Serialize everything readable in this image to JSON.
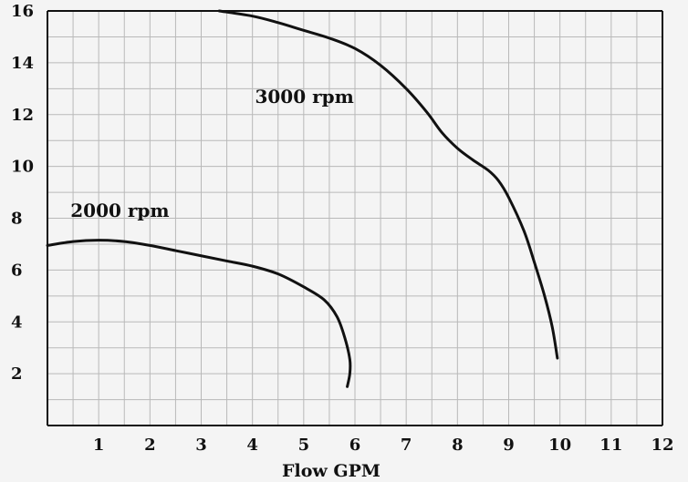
{
  "chart_data": {
    "type": "line",
    "title": "",
    "xlabel": "Flow GPM",
    "ylabel": "",
    "xlim": [
      0,
      12
    ],
    "ylim": [
      0,
      16
    ],
    "x_ticks": [
      1,
      2,
      3,
      4,
      5,
      6,
      7,
      8,
      9,
      10,
      11,
      12
    ],
    "y_ticks": [
      2,
      4,
      6,
      8,
      10,
      12,
      14,
      16
    ],
    "grid": true,
    "series": [
      {
        "name": "2000 rpm",
        "color": "#111111",
        "points": [
          [
            0.0,
            6.95
          ],
          [
            0.5,
            7.1
          ],
          [
            1.0,
            7.15
          ],
          [
            1.5,
            7.1
          ],
          [
            2.0,
            6.95
          ],
          [
            2.5,
            6.75
          ],
          [
            3.0,
            6.55
          ],
          [
            3.5,
            6.35
          ],
          [
            4.0,
            6.15
          ],
          [
            4.5,
            5.85
          ],
          [
            5.0,
            5.35
          ],
          [
            5.4,
            4.85
          ],
          [
            5.65,
            4.2
          ],
          [
            5.8,
            3.4
          ],
          [
            5.9,
            2.55
          ],
          [
            5.9,
            2.0
          ],
          [
            5.85,
            1.5
          ]
        ]
      },
      {
        "name": "3000 rpm",
        "color": "#111111",
        "points": [
          [
            3.35,
            16.0
          ],
          [
            4.0,
            15.8
          ],
          [
            4.5,
            15.55
          ],
          [
            5.0,
            15.25
          ],
          [
            5.5,
            14.95
          ],
          [
            6.0,
            14.55
          ],
          [
            6.5,
            13.9
          ],
          [
            7.0,
            13.0
          ],
          [
            7.4,
            12.1
          ],
          [
            7.7,
            11.3
          ],
          [
            8.0,
            10.7
          ],
          [
            8.3,
            10.25
          ],
          [
            8.6,
            9.85
          ],
          [
            8.8,
            9.45
          ],
          [
            9.0,
            8.8
          ],
          [
            9.3,
            7.5
          ],
          [
            9.5,
            6.3
          ],
          [
            9.7,
            5.0
          ],
          [
            9.85,
            3.8
          ],
          [
            9.95,
            2.6
          ]
        ]
      }
    ]
  }
}
